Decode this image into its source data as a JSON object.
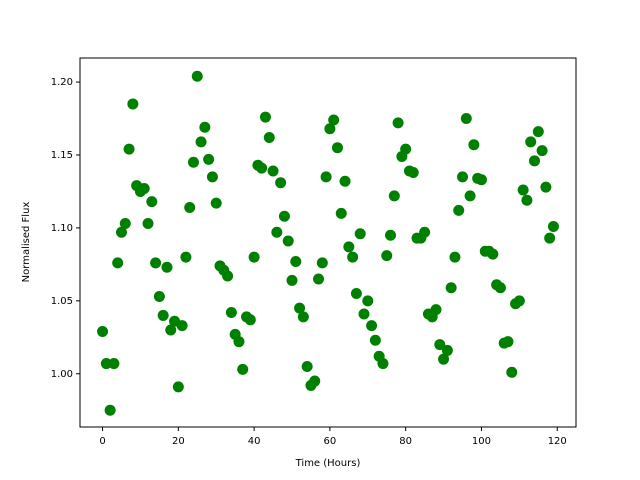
{
  "chart_data": {
    "type": "scatter",
    "xlabel": "Time (Hours)",
    "ylabel": "Normalised Flux",
    "color": "#008000",
    "x": [
      0,
      1,
      2,
      3,
      4,
      5,
      6,
      7,
      8,
      9,
      10,
      11,
      12,
      13,
      14,
      15,
      16,
      17,
      18,
      19,
      20,
      21,
      22,
      23,
      24,
      25,
      26,
      27,
      28,
      29,
      30,
      31,
      32,
      33,
      34,
      35,
      36,
      37,
      38,
      39,
      40,
      41,
      42,
      43,
      44,
      45,
      46,
      47,
      48,
      49,
      50,
      51,
      52,
      53,
      54,
      55,
      56,
      57,
      58,
      59,
      60,
      61,
      62,
      63,
      64,
      65,
      66,
      67,
      68,
      69,
      70,
      71,
      72,
      73,
      74,
      75,
      76,
      77,
      78,
      79,
      80,
      81,
      82,
      83,
      84,
      85,
      86,
      87,
      88,
      89,
      90,
      91,
      92,
      93,
      94,
      95,
      96,
      97,
      98,
      99,
      100,
      101,
      102,
      103,
      104,
      105,
      106,
      107,
      108,
      109,
      110,
      111,
      112,
      113,
      114,
      115,
      116,
      117,
      118,
      119
    ],
    "values": [
      1.029,
      1.007,
      0.975,
      1.007,
      1.076,
      1.097,
      1.103,
      1.154,
      1.185,
      1.129,
      1.125,
      1.127,
      1.103,
      1.118,
      1.076,
      1.053,
      1.04,
      1.073,
      1.03,
      1.036,
      0.991,
      1.033,
      1.08,
      1.114,
      1.145,
      1.204,
      1.159,
      1.169,
      1.147,
      1.135,
      1.117,
      1.074,
      1.071,
      1.067,
      1.042,
      1.027,
      1.022,
      1.003,
      1.039,
      1.037,
      1.08,
      1.143,
      1.141,
      1.176,
      1.162,
      1.139,
      1.097,
      1.131,
      1.108,
      1.091,
      1.064,
      1.077,
      1.045,
      1.039,
      1.005,
      0.992,
      0.995,
      1.065,
      1.076,
      1.135,
      1.168,
      1.174,
      1.155,
      1.11,
      1.132,
      1.087,
      1.08,
      1.055,
      1.096,
      1.041,
      1.05,
      1.033,
      1.023,
      1.012,
      1.007,
      1.081,
      1.095,
      1.122,
      1.172,
      1.149,
      1.154,
      1.139,
      1.138,
      1.093,
      1.093,
      1.097,
      1.041,
      1.039,
      1.044,
      1.02,
      1.01,
      1.016,
      1.059,
      1.08,
      1.112,
      1.135,
      1.175,
      1.122,
      1.157,
      1.134,
      1.133,
      1.084,
      1.084,
      1.082,
      1.061,
      1.059,
      1.021,
      1.022,
      1.001,
      1.048,
      1.05,
      1.126,
      1.119,
      1.159,
      1.146,
      1.166,
      1.153,
      1.128,
      1.093,
      1.101
    ],
    "xlim": [
      -5.95,
      124.95
    ],
    "ylim": [
      0.9635,
      1.2165
    ],
    "xticks": [
      0,
      20,
      40,
      60,
      80,
      100,
      120
    ],
    "yticks": [
      {
        "value": 1.0,
        "label": "1.00"
      },
      {
        "value": 1.05,
        "label": "1.05"
      },
      {
        "value": 1.1,
        "label": "1.10"
      },
      {
        "value": 1.15,
        "label": "1.15"
      },
      {
        "value": 1.2,
        "label": "1.20"
      }
    ]
  }
}
